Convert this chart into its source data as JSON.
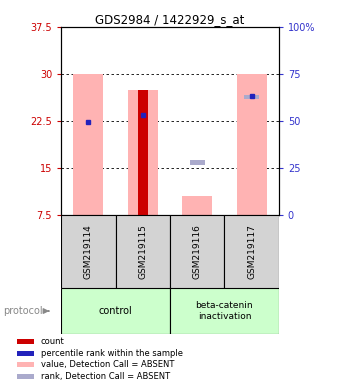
{
  "title": "GDS2984 / 1422929_s_at",
  "samples": [
    "GSM219114",
    "GSM219115",
    "GSM219116",
    "GSM219117"
  ],
  "ylim_left": [
    7.5,
    37.5
  ],
  "ylim_right": [
    0,
    100
  ],
  "yticks_left": [
    7.5,
    15.0,
    22.5,
    30.0,
    37.5
  ],
  "yticks_right": [
    0,
    25,
    50,
    75,
    100
  ],
  "ytick_labels_left": [
    "7.5",
    "15",
    "22.5",
    "30",
    "37.5"
  ],
  "ytick_labels_right": [
    "0",
    "25",
    "50",
    "75",
    "100%"
  ],
  "left_axis_color": "#cc0000",
  "right_axis_color": "#3333cc",
  "bars_absent_value": {
    "GSM219114": [
      7.5,
      30.0
    ],
    "GSM219115": [
      7.5,
      27.5
    ],
    "GSM219116": [
      7.5,
      10.5
    ],
    "GSM219117": [
      7.5,
      30.0
    ]
  },
  "bars_absent_rank": {
    "GSM219114": null,
    "GSM219115": null,
    "GSM219116": [
      15.5,
      16.2
    ],
    "GSM219117": [
      26.0,
      26.7
    ]
  },
  "count_bars": {
    "GSM219115": [
      7.5,
      27.5
    ]
  },
  "rank_dots": {
    "GSM219114": 22.4,
    "GSM219115": 23.5,
    "GSM219116": null,
    "GSM219117": 26.5
  },
  "pink_color": "#ffb3b3",
  "dark_red_color": "#cc0000",
  "blue_color": "#2222bb",
  "light_blue_color": "#aaaacc",
  "legend_items": [
    {
      "color": "#cc0000",
      "label": "count"
    },
    {
      "color": "#2222bb",
      "label": "percentile rank within the sample"
    },
    {
      "color": "#ffb3b3",
      "label": "value, Detection Call = ABSENT"
    },
    {
      "color": "#aaaacc",
      "label": "rank, Detection Call = ABSENT"
    }
  ],
  "group_color": "#ccffcc",
  "sample_bg": "#d3d3d3"
}
